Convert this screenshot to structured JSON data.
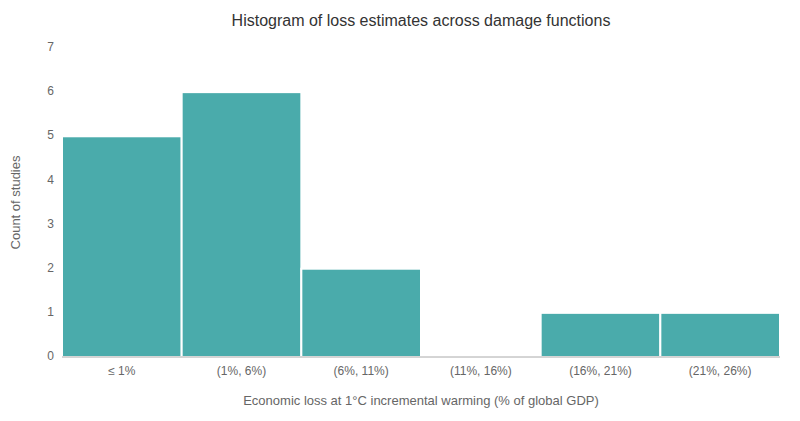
{
  "chart_data": {
    "type": "bar",
    "title": "Histogram of loss estimates across damage functions",
    "xlabel": "Economic loss at 1°C incremental warming (% of global GDP)",
    "ylabel": "Count of studies",
    "categories": [
      "≤ 1%",
      "(1%, 6%)",
      "(6%, 11%)",
      "(11%, 16%)",
      "(16%, 21%)",
      "(21%, 26%)"
    ],
    "values": [
      5,
      6,
      2,
      0,
      1,
      1
    ],
    "color": "#4aabab",
    "ylim": [
      0,
      7
    ],
    "yticks": [
      0,
      1,
      2,
      3,
      4,
      5,
      6,
      7
    ],
    "grid": false
  }
}
